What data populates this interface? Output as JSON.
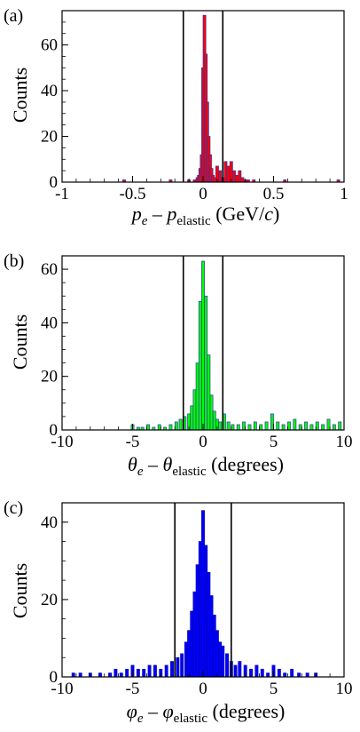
{
  "figure": {
    "panels": [
      {
        "label": "(a)",
        "ylabel": "Counts",
        "xlabel": {
          "v1": "p",
          "s1": "e",
          "minus": " – ",
          "v2": "p",
          "s2": "elastic",
          "unit_prefix": " (GeV/",
          "unit_italic": "c",
          "unit_suffix": ")"
        }
      },
      {
        "label": "(b)",
        "ylabel": "Counts",
        "xlabel": {
          "v1": "θ",
          "s1": "e",
          "minus": " – ",
          "v2": "θ",
          "s2": "elastic",
          "unit": " (degrees)"
        }
      },
      {
        "label": "(c)",
        "ylabel": "Counts",
        "xlabel": {
          "v1": "φ",
          "s1": "e",
          "minus": " – ",
          "v2": "φ",
          "s2": "elastic",
          "unit": " (degrees)"
        }
      }
    ]
  },
  "chart_data": [
    {
      "type": "histogram",
      "fill_color": "#ff0000",
      "outline_color": "#3333aa",
      "xlim": [
        -1,
        1
      ],
      "ylim": [
        0,
        75
      ],
      "xticks": [
        -1,
        -0.5,
        0,
        0.5,
        1
      ],
      "xtick_labels": [
        "-1",
        "-0.5",
        "0",
        "0.5",
        "1"
      ],
      "yticks": [
        0,
        20,
        40,
        60
      ],
      "ytick_labels": [
        "0",
        "20",
        "40",
        "60"
      ],
      "cut_lines": [
        -0.14,
        0.14
      ],
      "bins": [
        [
          -0.56,
          1
        ],
        [
          -0.23,
          1
        ],
        [
          -0.1,
          1
        ],
        [
          -0.06,
          1
        ],
        [
          -0.04,
          2
        ],
        [
          -0.03,
          3
        ],
        [
          -0.02,
          6
        ],
        [
          -0.01,
          12
        ],
        [
          0.0,
          50
        ],
        [
          0.01,
          73
        ],
        [
          0.02,
          56
        ],
        [
          0.03,
          35
        ],
        [
          0.04,
          20
        ],
        [
          0.05,
          12
        ],
        [
          0.06,
          6
        ],
        [
          0.07,
          3
        ],
        [
          0.08,
          2
        ],
        [
          0.1,
          7
        ],
        [
          0.12,
          5
        ],
        [
          0.14,
          2
        ],
        [
          0.16,
          9
        ],
        [
          0.18,
          7
        ],
        [
          0.2,
          9
        ],
        [
          0.22,
          5
        ],
        [
          0.24,
          3
        ],
        [
          0.26,
          5
        ],
        [
          0.28,
          2
        ],
        [
          0.3,
          1
        ],
        [
          0.32,
          1
        ],
        [
          0.36,
          1
        ],
        [
          0.58,
          1
        ],
        [
          0.96,
          1
        ]
      ]
    },
    {
      "type": "histogram",
      "fill_color": "#00ff00",
      "outline_color": "#3333aa",
      "xlim": [
        -10,
        10
      ],
      "ylim": [
        0,
        65
      ],
      "xticks": [
        -10,
        -5,
        0,
        5,
        10
      ],
      "xtick_labels": [
        "-10",
        "-5",
        "0",
        "5",
        "10"
      ],
      "yticks": [
        0,
        20,
        40,
        60
      ],
      "ytick_labels": [
        "0",
        "20",
        "40",
        "60"
      ],
      "cut_lines": [
        -1.4,
        1.4
      ],
      "bins": [
        [
          -5.0,
          2
        ],
        [
          -4.6,
          1
        ],
        [
          -4.3,
          1
        ],
        [
          -3.9,
          2
        ],
        [
          -3.5,
          1
        ],
        [
          -3.1,
          2
        ],
        [
          -2.7,
          1
        ],
        [
          -2.3,
          2
        ],
        [
          -1.9,
          3
        ],
        [
          -1.6,
          4
        ],
        [
          -1.3,
          5
        ],
        [
          -1.0,
          6
        ],
        [
          -0.8,
          9
        ],
        [
          -0.6,
          15
        ],
        [
          -0.4,
          25
        ],
        [
          -0.2,
          48
        ],
        [
          0.0,
          63
        ],
        [
          0.2,
          50
        ],
        [
          0.4,
          28
        ],
        [
          0.6,
          13
        ],
        [
          0.8,
          7
        ],
        [
          1.0,
          4
        ],
        [
          1.2,
          3
        ],
        [
          1.5,
          6
        ],
        [
          1.8,
          3
        ],
        [
          2.1,
          2
        ],
        [
          2.5,
          2
        ],
        [
          2.9,
          3
        ],
        [
          3.3,
          2
        ],
        [
          3.7,
          3
        ],
        [
          4.1,
          2
        ],
        [
          4.5,
          3
        ],
        [
          4.9,
          6
        ],
        [
          5.3,
          3
        ],
        [
          5.7,
          2
        ],
        [
          6.1,
          3
        ],
        [
          6.5,
          4
        ],
        [
          6.9,
          2
        ],
        [
          7.3,
          3
        ],
        [
          7.7,
          2
        ],
        [
          8.1,
          3
        ],
        [
          8.5,
          2
        ],
        [
          8.9,
          4
        ],
        [
          9.3,
          2
        ],
        [
          9.7,
          3
        ]
      ]
    },
    {
      "type": "histogram",
      "fill_color": "#0000ff",
      "outline_color": "#0000aa",
      "xlim": [
        -10,
        10
      ],
      "ylim": [
        0,
        45
      ],
      "xticks": [
        -10,
        -5,
        0,
        5,
        10
      ],
      "xtick_labels": [
        "-10",
        "-5",
        "0",
        "5",
        "10"
      ],
      "yticks": [
        0,
        20,
        40
      ],
      "ytick_labels": [
        "0",
        "20",
        "40"
      ],
      "cut_lines": [
        -2.0,
        2.0
      ],
      "bins": [
        [
          -9.2,
          1
        ],
        [
          -8.7,
          1
        ],
        [
          -8.0,
          1
        ],
        [
          -7.3,
          1
        ],
        [
          -6.6,
          1
        ],
        [
          -6.2,
          2
        ],
        [
          -5.8,
          1
        ],
        [
          -5.4,
          2
        ],
        [
          -5.0,
          3
        ],
        [
          -4.6,
          2
        ],
        [
          -4.2,
          2
        ],
        [
          -3.8,
          3
        ],
        [
          -3.4,
          3
        ],
        [
          -3.0,
          2
        ],
        [
          -2.6,
          3
        ],
        [
          -2.2,
          4
        ],
        [
          -1.8,
          5
        ],
        [
          -1.5,
          6
        ],
        [
          -1.2,
          9
        ],
        [
          -1.0,
          12
        ],
        [
          -0.8,
          17
        ],
        [
          -0.6,
          22
        ],
        [
          -0.4,
          29
        ],
        [
          -0.2,
          35
        ],
        [
          0.0,
          43
        ],
        [
          0.2,
          34
        ],
        [
          0.4,
          27
        ],
        [
          0.6,
          21
        ],
        [
          0.8,
          16
        ],
        [
          1.0,
          12
        ],
        [
          1.2,
          9
        ],
        [
          1.4,
          8
        ],
        [
          1.7,
          6
        ],
        [
          2.0,
          4
        ],
        [
          2.3,
          3
        ],
        [
          2.6,
          4
        ],
        [
          3.0,
          3
        ],
        [
          3.4,
          2
        ],
        [
          3.8,
          3
        ],
        [
          4.2,
          2
        ],
        [
          4.6,
          1
        ],
        [
          5.0,
          3
        ],
        [
          5.4,
          2
        ],
        [
          5.8,
          1
        ],
        [
          6.3,
          2
        ],
        [
          6.8,
          1
        ],
        [
          7.4,
          1
        ],
        [
          8.0,
          1
        ]
      ]
    }
  ]
}
